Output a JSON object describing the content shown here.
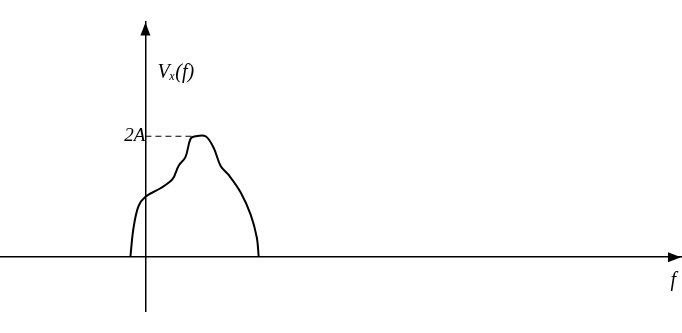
{
  "chart_data": {
    "type": "line",
    "ylabel": "Vₓ(f)",
    "xlabel": "f",
    "x": [
      -0.3,
      -0.24,
      -0.14,
      0,
      0.3,
      0.54,
      0.66,
      0.8,
      0.9,
      1.0,
      1.2,
      1.36,
      1.5,
      1.66,
      1.9,
      2.1,
      2.22,
      2.26
    ],
    "values": [
      0,
      0.47,
      0.84,
      1.0,
      1.14,
      1.29,
      1.51,
      1.66,
      1.96,
      2.0,
      2.0,
      1.81,
      1.51,
      1.36,
      1.07,
      0.7,
      0.33,
      0
    ],
    "color": "#000000",
    "xlim": [
      -2.9,
      10.7
    ],
    "ylim": [
      -0.9,
      3.9
    ],
    "yticks": [
      {
        "value": 2,
        "label": "2A"
      }
    ],
    "grid": false,
    "tick_labels": "y"
  }
}
